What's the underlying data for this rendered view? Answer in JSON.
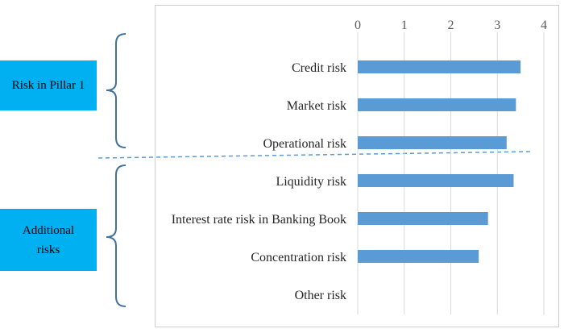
{
  "groups": [
    {
      "label_lines": [
        "Risk in Pillar 1"
      ]
    },
    {
      "label_lines": [
        "Additional",
        "risks"
      ]
    }
  ],
  "chart_data": {
    "type": "bar",
    "orientation": "horizontal",
    "categories": [
      "Credit risk",
      "Market risk",
      "Operational risk",
      "Liquidity risk",
      "Interest rate risk in Banking Book",
      "Concentration risk",
      "Other risk"
    ],
    "values": [
      3.5,
      3.4,
      3.2,
      3.35,
      2.8,
      2.6,
      0
    ],
    "xlim": [
      0,
      4
    ],
    "xticks": [
      0,
      1,
      2,
      3,
      4
    ],
    "x_axis_position": "top",
    "grid": true,
    "bar_color": "#5b9bd5",
    "title": "",
    "xlabel": "",
    "ylabel": ""
  }
}
